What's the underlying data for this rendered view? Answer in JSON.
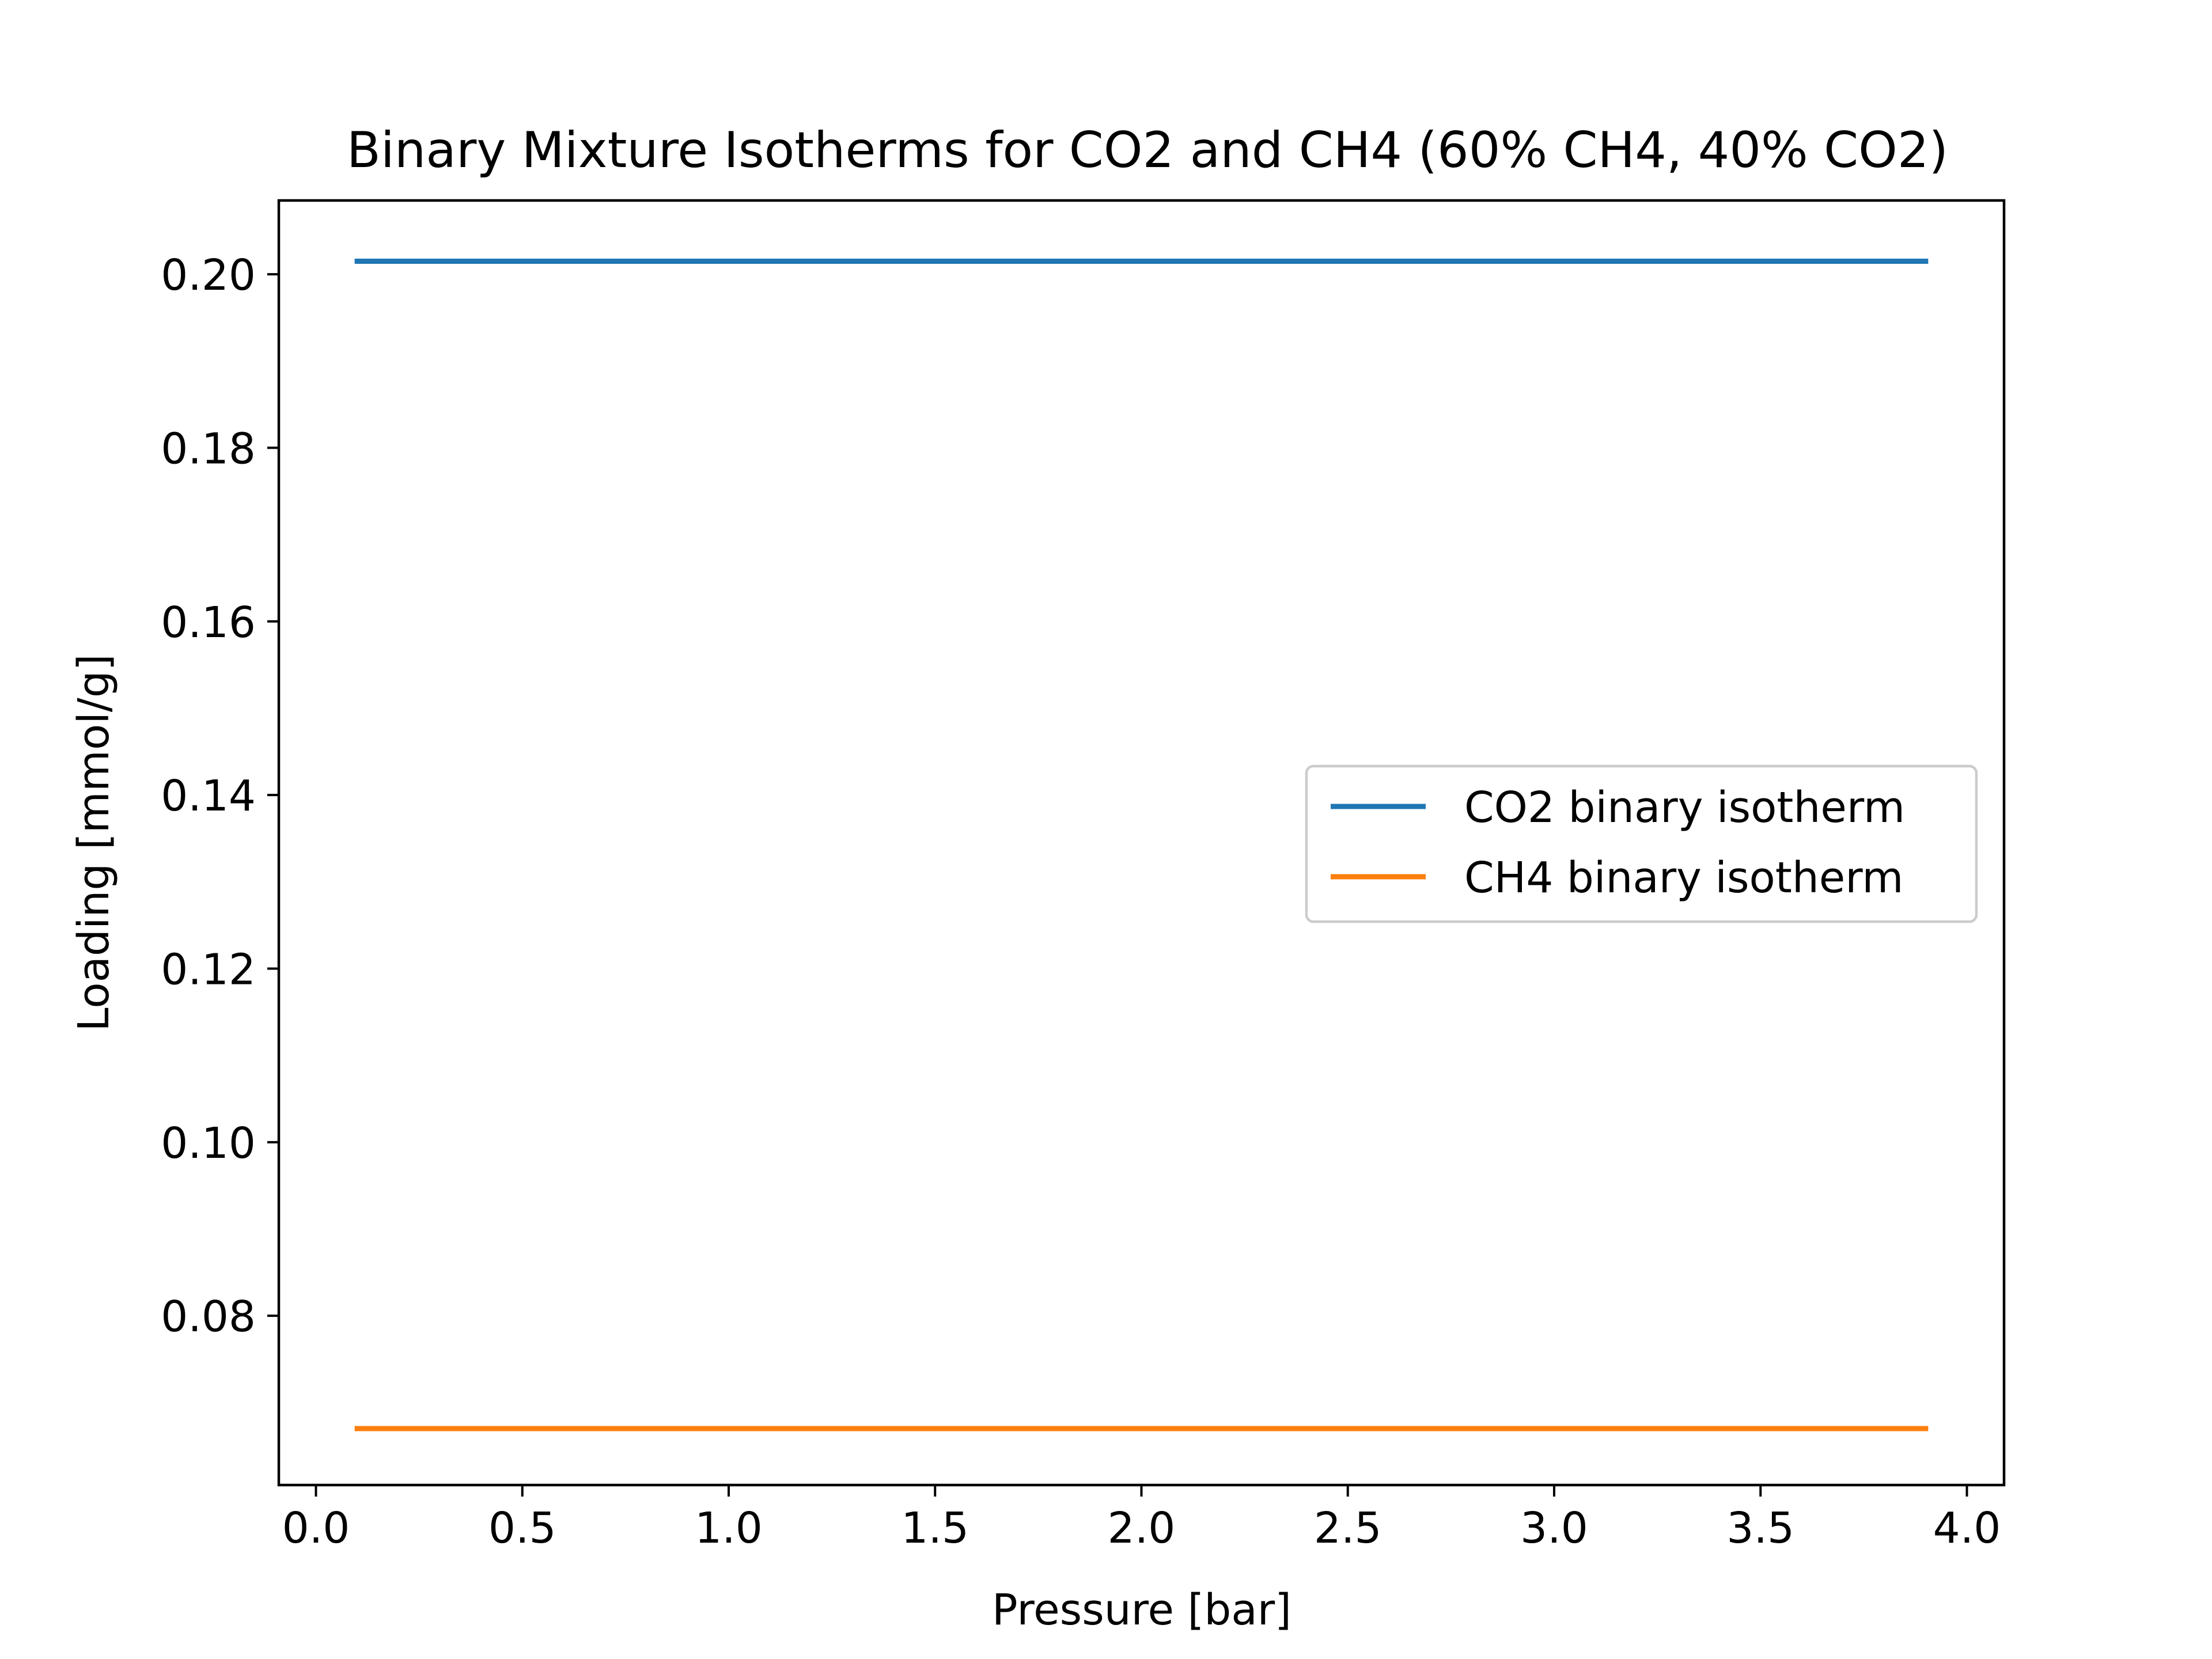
{
  "chart_data": {
    "type": "line",
    "title": "Binary Mixture Isotherms for CO2 and CH4 (60% CH4, 40% CO2)",
    "xlabel": "Pressure [bar]",
    "ylabel": "Loading [mmol/g]",
    "xlim": [
      -0.09,
      4.09
    ],
    "ylim": [
      0.0605,
      0.2085
    ],
    "xticks": [
      0.0,
      0.5,
      1.0,
      1.5,
      2.0,
      2.5,
      3.0,
      3.5,
      4.0
    ],
    "xtick_labels": [
      "0.0",
      "0.5",
      "1.0",
      "1.5",
      "2.0",
      "2.5",
      "3.0",
      "3.5",
      "4.0"
    ],
    "yticks": [
      0.08,
      0.1,
      0.12,
      0.14,
      0.16,
      0.18,
      0.2
    ],
    "ytick_labels": [
      "0.08",
      "0.10",
      "0.12",
      "0.14",
      "0.16",
      "0.18",
      "0.20"
    ],
    "grid": false,
    "legend_position": "center-right",
    "series": [
      {
        "name": "CO2 binary isotherm",
        "color": "#1f77b4",
        "x": [
          0.1,
          3.9
        ],
        "y": [
          0.2015,
          0.2015
        ]
      },
      {
        "name": "CH4 binary isotherm",
        "color": "#ff7f0e",
        "x": [
          0.1,
          3.9
        ],
        "y": [
          0.067,
          0.067
        ]
      }
    ]
  }
}
